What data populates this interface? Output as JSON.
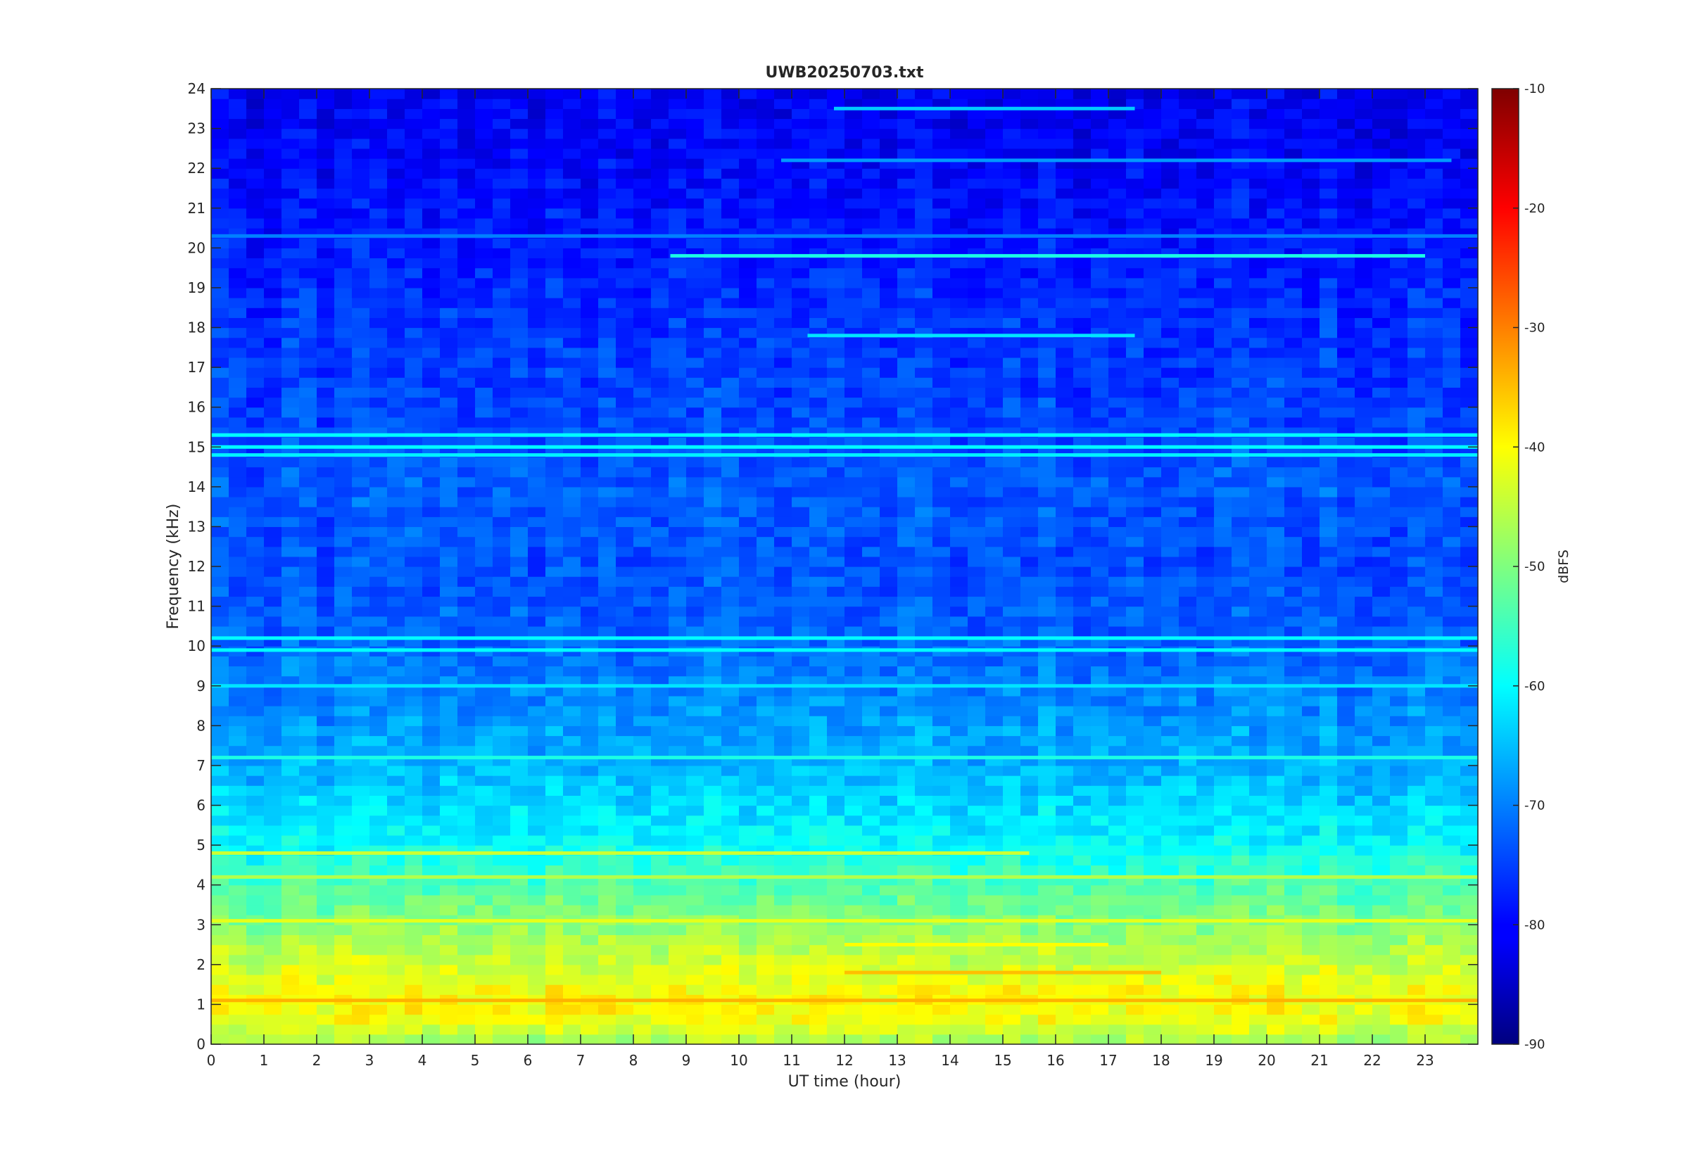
{
  "chart_data": {
    "type": "heatmap",
    "title": "UWB20250703.txt",
    "xlabel": "UT time (hour)",
    "ylabel": "Frequency (kHz)",
    "colorbar_label": "dBFS",
    "colormap": "jet",
    "xlim": [
      0,
      24
    ],
    "ylim": [
      0,
      24
    ],
    "clim": [
      -90,
      -10
    ],
    "x_ticks": [
      0,
      1,
      2,
      3,
      4,
      5,
      6,
      7,
      8,
      9,
      10,
      11,
      12,
      13,
      14,
      15,
      16,
      17,
      18,
      19,
      20,
      21,
      22,
      23
    ],
    "y_ticks": [
      0,
      1,
      2,
      3,
      4,
      5,
      6,
      7,
      8,
      9,
      10,
      11,
      12,
      13,
      14,
      15,
      16,
      17,
      18,
      19,
      20,
      21,
      22,
      23,
      24
    ],
    "colorbar_ticks": [
      -90,
      -80,
      -70,
      -60,
      -50,
      -40,
      -30,
      -20,
      -10
    ],
    "grid": false,
    "background_level_profile": [
      {
        "freq_khz": 0.0,
        "dbfs": -48
      },
      {
        "freq_khz": 0.5,
        "dbfs": -42
      },
      {
        "freq_khz": 1.0,
        "dbfs": -40
      },
      {
        "freq_khz": 1.5,
        "dbfs": -41
      },
      {
        "freq_khz": 2.0,
        "dbfs": -44
      },
      {
        "freq_khz": 3.0,
        "dbfs": -49
      },
      {
        "freq_khz": 4.0,
        "dbfs": -54
      },
      {
        "freq_khz": 5.0,
        "dbfs": -60
      },
      {
        "freq_khz": 6.0,
        "dbfs": -63
      },
      {
        "freq_khz": 7.0,
        "dbfs": -66
      },
      {
        "freq_khz": 8.0,
        "dbfs": -68
      },
      {
        "freq_khz": 9.0,
        "dbfs": -70
      },
      {
        "freq_khz": 10.0,
        "dbfs": -72
      },
      {
        "freq_khz": 12.0,
        "dbfs": -74
      },
      {
        "freq_khz": 14.0,
        "dbfs": -73
      },
      {
        "freq_khz": 16.0,
        "dbfs": -75
      },
      {
        "freq_khz": 18.0,
        "dbfs": -76
      },
      {
        "freq_khz": 20.0,
        "dbfs": -78
      },
      {
        "freq_khz": 22.0,
        "dbfs": -80
      },
      {
        "freq_khz": 24.0,
        "dbfs": -81
      }
    ],
    "persistent_lines": [
      {
        "freq_khz": 1.1,
        "dbfs": -34,
        "t_start": 0,
        "t_end": 24
      },
      {
        "freq_khz": 1.8,
        "dbfs": -35,
        "t_start": 12,
        "t_end": 18
      },
      {
        "freq_khz": 2.5,
        "dbfs": -40,
        "t_start": 12,
        "t_end": 17
      },
      {
        "freq_khz": 3.1,
        "dbfs": -42,
        "t_start": 0,
        "t_end": 24
      },
      {
        "freq_khz": 4.2,
        "dbfs": -46,
        "t_start": 0,
        "t_end": 24
      },
      {
        "freq_khz": 4.8,
        "dbfs": -44,
        "t_start": 0,
        "t_end": 15.5
      },
      {
        "freq_khz": 7.2,
        "dbfs": -58,
        "t_start": 0,
        "t_end": 24
      },
      {
        "freq_khz": 9.0,
        "dbfs": -62,
        "t_start": 0,
        "t_end": 24
      },
      {
        "freq_khz": 9.9,
        "dbfs": -60,
        "t_start": 0,
        "t_end": 24
      },
      {
        "freq_khz": 10.2,
        "dbfs": -60,
        "t_start": 0,
        "t_end": 24
      },
      {
        "freq_khz": 14.8,
        "dbfs": -61,
        "t_start": 0,
        "t_end": 24
      },
      {
        "freq_khz": 15.0,
        "dbfs": -60,
        "t_start": 0,
        "t_end": 24
      },
      {
        "freq_khz": 15.3,
        "dbfs": -60,
        "t_start": 0,
        "t_end": 24
      },
      {
        "freq_khz": 17.8,
        "dbfs": -62,
        "t_start": 11.3,
        "t_end": 17.5
      },
      {
        "freq_khz": 19.8,
        "dbfs": -58,
        "t_start": 8.7,
        "t_end": 23.0
      },
      {
        "freq_khz": 20.3,
        "dbfs": -70,
        "t_start": 0,
        "t_end": 24
      },
      {
        "freq_khz": 22.2,
        "dbfs": -68,
        "t_start": 10.8,
        "t_end": 23.5
      },
      {
        "freq_khz": 23.5,
        "dbfs": -64,
        "t_start": 11.8,
        "t_end": 17.5
      }
    ]
  }
}
